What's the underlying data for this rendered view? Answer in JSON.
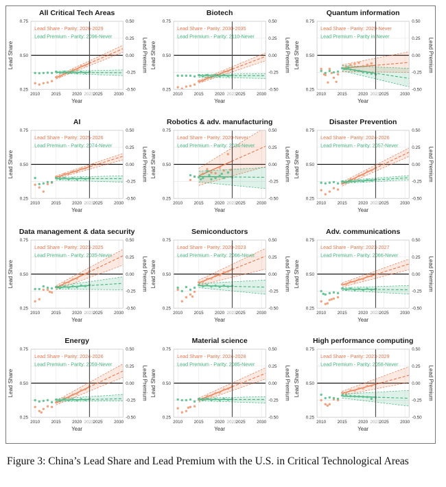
{
  "figure": {
    "caption": "Figure 3: China’s Lead Share and Lead Premium with the U.S. in Critical Technological Areas"
  },
  "axes": {
    "x_label": "Year",
    "x_ticks": [
      2010,
      2015,
      2020,
      2025,
      2030
    ],
    "x_extra_tick": 2023,
    "x_domain": [
      2009,
      2031
    ],
    "left_label": "Lead Share",
    "left_ticks": [
      "0.75",
      "0.50",
      "0.25"
    ],
    "left_tick_values": [
      0.75,
      0.5,
      0.25
    ],
    "left_domain": [
      0.25,
      0.75
    ],
    "right_label": "Lead Premium",
    "right_ticks": [
      "0.50",
      "0.25",
      "0.00",
      "-0.25",
      "-0.50"
    ],
    "right_tick_positions": [
      0.75,
      0.625,
      0.5,
      0.375,
      0.25
    ],
    "right_domain": [
      -0.5,
      0.5
    ],
    "grid_h_values": [
      0.375,
      0.625
    ],
    "hline_value": 0.5,
    "vline_year": 2023,
    "fit_start_year": 2015,
    "fit_end_year": 2030,
    "solid_end_year": 2023
  },
  "colors": {
    "share": "#e8764d",
    "share_point": "#ef9a74",
    "share_band": "rgba(235,125,80,0.17)",
    "premium": "#3fb27d",
    "premium_point": "#5bbf8f",
    "premium_band": "rgba(63,178,125,0.17)",
    "grid": "#e9e9e9",
    "frame": "#c8c8c8",
    "vline": "#4d4d4d",
    "hline": "#000000",
    "tick": "#333333",
    "tick_muted": "#a6a6a6",
    "title": "#1a1a1a"
  },
  "chart_data": [
    {
      "type": "line",
      "title": "All Critical Tech Areas",
      "legend_share": "Lead Share - Parity: 2026-2029",
      "legend_premium": "Lead Premium - Parity: 2096-Never",
      "share": {
        "fit": [
          0.335,
          0.535
        ],
        "band": [
          0.345,
          0.325,
          0.56,
          0.51
        ],
        "pts": [
          [
            2010,
            0.295
          ],
          [
            2011,
            0.285
          ],
          [
            2012,
            0.295
          ],
          [
            2013,
            0.3
          ],
          [
            2014,
            0.31
          ]
        ],
        "auto": true
      },
      "premium": {
        "fit": [
          0.375,
          0.372
        ],
        "band": [
          0.382,
          0.368,
          0.392,
          0.352
        ],
        "pts": [
          [
            2010,
            0.37
          ],
          [
            2011,
            0.368
          ],
          [
            2012,
            0.37
          ],
          [
            2013,
            0.372
          ],
          [
            2014,
            0.37
          ]
        ],
        "auto": true
      }
    },
    {
      "type": "line",
      "title": "Biotech",
      "legend_share": "Lead Share - Parity: 2030-2035",
      "legend_premium": "Lead Premium - Parity: 2110-Never",
      "share": {
        "fit": [
          0.305,
          0.48
        ],
        "band": [
          0.315,
          0.295,
          0.505,
          0.45
        ],
        "pts": [
          [
            2010,
            0.265
          ],
          [
            2011,
            0.255
          ],
          [
            2012,
            0.27
          ],
          [
            2013,
            0.275
          ],
          [
            2014,
            0.285
          ]
        ],
        "auto": true
      },
      "premium": {
        "fit": [
          0.35,
          0.35
        ],
        "band": [
          0.36,
          0.34,
          0.365,
          0.33
        ],
        "pts": [
          [
            2010,
            0.35
          ],
          [
            2011,
            0.35
          ],
          [
            2012,
            0.35
          ],
          [
            2013,
            0.35
          ],
          [
            2014,
            0.345
          ]
        ],
        "auto": true
      }
    },
    {
      "type": "line",
      "title": "Quantum information",
      "legend_share": "Lead Share - Parity: 2029-Never",
      "legend_premium": "Lead Premium - Parity in Never",
      "share": {
        "fit": [
          0.405,
          0.445
        ],
        "band": [
          0.43,
          0.38,
          0.52,
          0.375
        ],
        "pts": [
          [
            2010,
            0.4
          ],
          [
            2010.7,
            0.36
          ],
          [
            2011,
            0.355
          ],
          [
            2011.6,
            0.3
          ],
          [
            2012,
            0.4
          ],
          [
            2012.5,
            0.37
          ],
          [
            2013,
            0.335
          ],
          [
            2013.6,
            0.305
          ],
          [
            2014,
            0.36
          ],
          [
            2016,
            0.415
          ],
          [
            2017,
            0.43
          ],
          [
            2018,
            0.437
          ],
          [
            2019,
            0.445
          ],
          [
            2020,
            0.42
          ],
          [
            2021,
            0.43
          ],
          [
            2022,
            0.44
          ]
        ],
        "auto": false
      },
      "premium": {
        "fit": [
          0.405,
          0.335
        ],
        "band": [
          0.425,
          0.385,
          0.405,
          0.275
        ],
        "pts": [
          [
            2010,
            0.385
          ],
          [
            2011,
            0.37
          ],
          [
            2012,
            0.385
          ],
          [
            2013,
            0.375
          ],
          [
            2014,
            0.38
          ],
          [
            2015,
            0.405
          ],
          [
            2015.5,
            0.4
          ],
          [
            2016,
            0.4
          ],
          [
            2016.5,
            0.41
          ],
          [
            2017,
            0.395
          ],
          [
            2018,
            0.39
          ],
          [
            2019,
            0.385
          ],
          [
            2020,
            0.375
          ],
          [
            2021,
            0.37
          ],
          [
            2022,
            0.365
          ],
          [
            2023,
            0.36
          ]
        ],
        "auto": false
      }
    },
    {
      "type": "line",
      "title": "AI",
      "legend_share": "Lead Share - Parity: 2025-2026",
      "legend_premium": "Lead Premium - Parity: 2074-Never",
      "share": {
        "fit": [
          0.405,
          0.55
        ],
        "band": [
          0.415,
          0.395,
          0.57,
          0.525
        ],
        "pts": [
          [
            2010,
            0.35
          ],
          [
            2011,
            0.33
          ],
          [
            2012,
            0.3
          ],
          [
            2013,
            0.355
          ],
          [
            2014,
            0.365
          ]
        ],
        "auto": true
      },
      "premium": {
        "fit": [
          0.395,
          0.395
        ],
        "band": [
          0.405,
          0.385,
          0.415,
          0.37
        ],
        "pts": [
          [
            2010,
            0.4
          ],
          [
            2011,
            0.355
          ],
          [
            2012,
            0.36
          ],
          [
            2013,
            0.37
          ],
          [
            2014,
            0.37
          ]
        ],
        "auto": true
      }
    },
    {
      "type": "line",
      "title": "Robotics & adv. manufacturing",
      "legend_share": "Lead Share - Parity: 2020-Never",
      "legend_premium": "Lead Premium - Parity: 2034-Never",
      "share": {
        "fit": [
          0.415,
          0.62
        ],
        "band": [
          0.47,
          0.345,
          0.755,
          0.475
        ],
        "pts": [
          [
            2013,
            0.385
          ],
          [
            2014,
            0.41
          ],
          [
            2016,
            0.43
          ],
          [
            2017,
            0.465
          ],
          [
            2018,
            0.44
          ],
          [
            2019,
            0.435
          ],
          [
            2020,
            0.475
          ],
          [
            2021,
            0.455
          ],
          [
            2022,
            0.575
          ],
          [
            2022.6,
            0.46
          ]
        ],
        "auto": false
      },
      "premium": {
        "fit": [
          0.41,
          0.405
        ],
        "band": [
          0.45,
          0.37,
          0.475,
          0.325
        ],
        "pts": [
          [
            2013,
            0.42
          ],
          [
            2014,
            0.41
          ],
          [
            2015,
            0.405
          ],
          [
            2015.5,
            0.39
          ],
          [
            2016,
            0.4
          ],
          [
            2017,
            0.45
          ],
          [
            2017.5,
            0.42
          ],
          [
            2018,
            0.39
          ],
          [
            2019,
            0.4
          ],
          [
            2020,
            0.415
          ],
          [
            2020.5,
            0.43
          ],
          [
            2021,
            0.4
          ],
          [
            2022,
            0.44
          ],
          [
            2023,
            0.405
          ]
        ],
        "auto": false
      }
    },
    {
      "type": "line",
      "title": "Disaster Prevention",
      "legend_share": "Lead Share - Parity: 2024-2026",
      "legend_premium": "Lead Premium - Parity: 2057-Never",
      "share": {
        "fit": [
          0.355,
          0.575
        ],
        "band": [
          0.37,
          0.34,
          0.605,
          0.545
        ],
        "pts": [
          [
            2010,
            0.31
          ],
          [
            2011,
            0.28
          ],
          [
            2012,
            0.3
          ],
          [
            2013,
            0.325
          ],
          [
            2014,
            0.315
          ]
        ],
        "auto": true
      },
      "premium": {
        "fit": [
          0.37,
          0.4
        ],
        "band": [
          0.38,
          0.36,
          0.415,
          0.385
        ],
        "pts": [
          [
            2010,
            0.365
          ],
          [
            2011,
            0.36
          ],
          [
            2012,
            0.365
          ],
          [
            2013,
            0.37
          ],
          [
            2014,
            0.36
          ]
        ],
        "auto": true
      }
    },
    {
      "type": "line",
      "title": "Data management & data security",
      "legend_share": "Lead Share - Parity: 2023-2025",
      "legend_premium": "Lead Premium - Parity: 2035-Never",
      "share": {
        "fit": [
          0.4,
          0.62
        ],
        "band": [
          0.415,
          0.385,
          0.665,
          0.555
        ],
        "pts": [
          [
            2010,
            0.3
          ],
          [
            2011,
            0.315
          ],
          [
            2012,
            0.385
          ],
          [
            2013,
            0.385
          ],
          [
            2013.5,
            0.37
          ],
          [
            2014,
            0.365
          ]
        ],
        "auto": true
      },
      "premium": {
        "fit": [
          0.4,
          0.43
        ],
        "band": [
          0.41,
          0.39,
          0.475,
          0.385
        ],
        "pts": [
          [
            2010,
            0.39
          ],
          [
            2011,
            0.39
          ],
          [
            2012,
            0.41
          ],
          [
            2013,
            0.4
          ],
          [
            2014,
            0.395
          ]
        ],
        "auto": true
      }
    },
    {
      "type": "line",
      "title": "Semiconductors",
      "legend_share": "Lead Share - Parity: 2020-2023",
      "legend_premium": "Lead Premium - Parity: 2066-Never",
      "share": {
        "fit": [
          0.435,
          0.62
        ],
        "band": [
          0.455,
          0.415,
          0.675,
          0.53
        ],
        "pts": [
          [
            2010,
            0.385
          ],
          [
            2011,
            0.3
          ],
          [
            2012,
            0.33
          ],
          [
            2013,
            0.35
          ],
          [
            2013.5,
            0.335
          ],
          [
            2014,
            0.37
          ]
        ],
        "auto": true
      },
      "premium": {
        "fit": [
          0.415,
          0.405
        ],
        "band": [
          0.43,
          0.4,
          0.455,
          0.355
        ],
        "pts": [
          [
            2010,
            0.4
          ],
          [
            2011,
            0.375
          ],
          [
            2012,
            0.405
          ],
          [
            2013,
            0.385
          ],
          [
            2014,
            0.4
          ]
        ],
        "auto": true
      }
    },
    {
      "type": "line",
      "title": "Adv. communications",
      "legend_share": "Lead Share - Parity: 2023-2027",
      "legend_premium": "Lead Premium - Parity: 2066-Never",
      "share": {
        "fit": [
          0.42,
          0.565
        ],
        "band": [
          0.435,
          0.405,
          0.6,
          0.525
        ],
        "pts": [
          [
            2010,
            0.3
          ],
          [
            2011,
            0.28
          ],
          [
            2011.5,
            0.285
          ],
          [
            2012,
            0.31
          ],
          [
            2012.5,
            0.315
          ],
          [
            2013,
            0.32
          ],
          [
            2014,
            0.33
          ]
        ],
        "auto": true
      },
      "premium": {
        "fit": [
          0.39,
          0.385
        ],
        "band": [
          0.4,
          0.38,
          0.415,
          0.355
        ],
        "pts": [
          [
            2010,
            0.375
          ],
          [
            2010.5,
            0.355
          ],
          [
            2011,
            0.35
          ],
          [
            2012,
            0.36
          ],
          [
            2013,
            0.365
          ],
          [
            2014,
            0.36
          ]
        ],
        "auto": true
      }
    },
    {
      "type": "line",
      "title": "Energy",
      "legend_share": "Lead Share - Parity: 2024-2026",
      "legend_premium": "Lead Premium - Parity: 2059-Never",
      "share": {
        "fit": [
          0.355,
          0.575
        ],
        "band": [
          0.37,
          0.34,
          0.625,
          0.53
        ],
        "pts": [
          [
            2010,
            0.325
          ],
          [
            2011,
            0.295
          ],
          [
            2011.5,
            0.285
          ],
          [
            2012,
            0.31
          ],
          [
            2013,
            0.33
          ],
          [
            2014,
            0.325
          ]
        ],
        "auto": true
      },
      "premium": {
        "fit": [
          0.375,
          0.385
        ],
        "band": [
          0.385,
          0.365,
          0.415,
          0.37
        ],
        "pts": [
          [
            2010,
            0.375
          ],
          [
            2011,
            0.365
          ],
          [
            2012,
            0.37
          ],
          [
            2013,
            0.375
          ],
          [
            2014,
            0.36
          ]
        ],
        "auto": true
      }
    },
    {
      "type": "line",
      "title": "Material science",
      "legend_share": "Lead Share - Parity: 2024-2028",
      "legend_premium": "Lead Premium - Parity: 2085-Never",
      "share": {
        "fit": [
          0.375,
          0.56
        ],
        "band": [
          0.39,
          0.36,
          0.6,
          0.52
        ],
        "pts": [
          [
            2010,
            0.315
          ],
          [
            2011,
            0.285
          ],
          [
            2012,
            0.295
          ],
          [
            2012.5,
            0.32
          ],
          [
            2013,
            0.325
          ],
          [
            2014,
            0.33
          ]
        ],
        "auto": true
      },
      "premium": {
        "fit": [
          0.38,
          0.38
        ],
        "band": [
          0.39,
          0.37,
          0.4,
          0.355
        ],
        "pts": [
          [
            2010,
            0.38
          ],
          [
            2011,
            0.375
          ],
          [
            2012,
            0.375
          ],
          [
            2013,
            0.38
          ],
          [
            2014,
            0.365
          ]
        ],
        "auto": true
      }
    },
    {
      "type": "line",
      "title": "High performance computing",
      "legend_share": "Lead Share - Parity: 2023-2029",
      "legend_premium": "Lead Premium - Parity: 2058-Never",
      "share": {
        "fit": [
          0.425,
          0.55
        ],
        "band": [
          0.44,
          0.41,
          0.61,
          0.5
        ],
        "pts": [
          [
            2010,
            0.375
          ],
          [
            2011,
            0.345
          ],
          [
            2011.5,
            0.335
          ],
          [
            2012,
            0.345
          ],
          [
            2013,
            0.38
          ],
          [
            2014,
            0.375
          ]
        ],
        "auto": true
      },
      "premium": {
        "fit": [
          0.405,
          0.39
        ],
        "band": [
          0.42,
          0.39,
          0.445,
          0.335
        ],
        "pts": [
          [
            2010,
            0.415
          ],
          [
            2011,
            0.39
          ],
          [
            2012,
            0.395
          ],
          [
            2013,
            0.39
          ],
          [
            2014,
            0.385
          ]
        ],
        "auto": false,
        "pts2": [
          [
            2015,
            0.41
          ],
          [
            2016,
            0.408
          ],
          [
            2017,
            0.405
          ],
          [
            2018,
            0.403
          ],
          [
            2019,
            0.402
          ],
          [
            2020,
            0.4
          ],
          [
            2021,
            0.398
          ],
          [
            2022,
            0.385
          ],
          [
            2023,
            0.395
          ]
        ]
      }
    }
  ]
}
